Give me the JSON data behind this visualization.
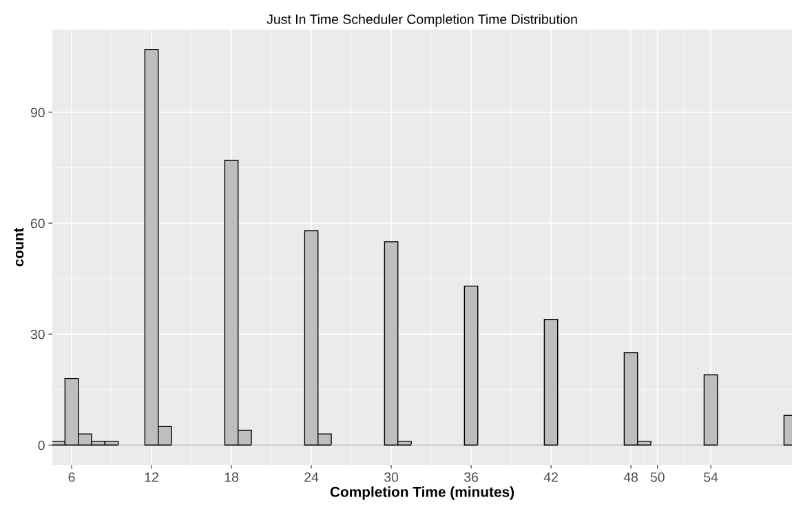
{
  "chart_data": {
    "type": "histogram",
    "title": "Just In Time Scheduler Completion Time Distribution",
    "xlabel": "Completion Time (minutes)",
    "ylabel": "count",
    "bins": [
      4.5,
      5.5,
      6.5,
      7.5,
      8.5,
      9.5,
      10.5,
      11.5,
      12.5,
      13.5,
      14.5,
      15.5,
      16.5,
      17.5,
      18.5,
      19.5,
      20.5,
      21.5,
      22.5,
      23.5,
      24.5,
      25.5,
      26.5,
      27.5,
      28.5,
      29.5,
      30.5,
      31.5,
      32.5,
      33.5,
      34.5,
      35.5,
      36.5,
      37.5,
      38.5,
      39.5,
      40.5,
      41.5,
      42.5,
      43.5,
      44.5,
      45.5,
      46.5,
      47.5,
      48.5,
      49.5,
      50.5,
      51.5,
      52.5,
      53.5,
      54.5,
      55.5,
      56.5,
      57.5,
      58.5,
      59.5,
      60.5
    ],
    "values": [
      1,
      18,
      3,
      1,
      1,
      0,
      0,
      107,
      5,
      0,
      0,
      0,
      0,
      77,
      4,
      0,
      0,
      0,
      0,
      58,
      3,
      0,
      0,
      0,
      0,
      55,
      1,
      0,
      0,
      0,
      0,
      43,
      0,
      0,
      0,
      0,
      0,
      34,
      0,
      0,
      0,
      0,
      0,
      25,
      1,
      0,
      0,
      0,
      0,
      19,
      0,
      0,
      0,
      0,
      0,
      8
    ],
    "color": "#bebebe",
    "xlim": [
      4.55,
      60.1
    ],
    "xticks": [
      6,
      12,
      18,
      24,
      30,
      36,
      42,
      48,
      50,
      54
    ],
    "ylim": [
      -5.35,
      112.35
    ],
    "yticks": [
      0,
      30,
      60,
      90
    ],
    "grid": true
  }
}
